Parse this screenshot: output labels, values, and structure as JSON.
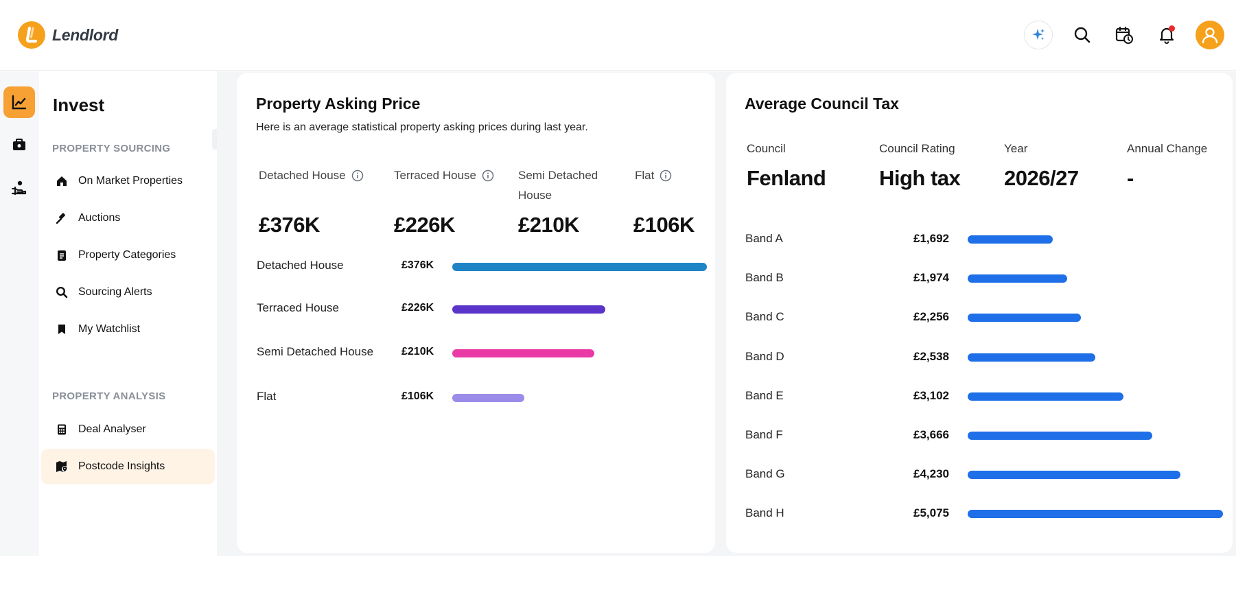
{
  "app": {
    "name": "Lendlord"
  },
  "colors": {
    "accent": "#f5a11c",
    "notification": "#ea2b2b",
    "band_bar": "#1e6fe8"
  },
  "header": {
    "icons": [
      "sparkle-icon",
      "search-icon",
      "calendar-icon",
      "bell-icon",
      "user-avatar-icon"
    ]
  },
  "rail": {
    "items": [
      "chart-icon",
      "briefcase-icon",
      "hand-coin-icon"
    ],
    "active_index": 0
  },
  "sidebar": {
    "title": "Invest",
    "sections": [
      {
        "title": "PROPERTY SOURCING",
        "items": [
          {
            "label": "On Market Properties",
            "icon": "home-icon"
          },
          {
            "label": "Auctions",
            "icon": "gavel-icon"
          },
          {
            "label": "Property Categories",
            "icon": "clipboard-icon"
          },
          {
            "label": "Sourcing Alerts",
            "icon": "search-icon"
          },
          {
            "label": "My Watchlist",
            "icon": "bookmark-icon"
          }
        ]
      },
      {
        "title": "PROPERTY ANALYSIS",
        "items": [
          {
            "label": "Deal Analyser",
            "icon": "calculator-icon"
          },
          {
            "label": "Postcode Insights",
            "icon": "map-pin-icon",
            "active": true
          }
        ]
      }
    ]
  },
  "asking_price": {
    "title": "Property Asking Price",
    "subtitle": "Here is an average statistical property asking prices during last year.",
    "stats": [
      {
        "label": "Detached House",
        "value": "£376K",
        "info": true
      },
      {
        "label": "Terraced House",
        "value": "£226K",
        "info": true
      },
      {
        "label": "Semi Detached House",
        "value": "£210K",
        "info": false
      },
      {
        "label": "Flat",
        "value": "£106K",
        "info": true
      }
    ]
  },
  "council_tax": {
    "title": "Average Council Tax",
    "meta": [
      {
        "label": "Council",
        "value": "Fenland"
      },
      {
        "label": "Council Rating",
        "value": "High tax"
      },
      {
        "label": "Year",
        "value": "2026/27"
      },
      {
        "label": "Annual Change",
        "value": "-"
      }
    ]
  },
  "chart_data": [
    {
      "type": "bar",
      "orientation": "horizontal",
      "categories": [
        "Detached House",
        "Terraced House",
        "Semi Detached House",
        "Flat"
      ],
      "values": [
        376,
        226,
        210,
        106
      ],
      "value_labels": [
        "£376K",
        "£226K",
        "£210K",
        "£106K"
      ],
      "colors": [
        "#1f84c6",
        "#5b35c9",
        "#ea3aa6",
        "#9a8ce8"
      ],
      "xlim": [
        0,
        376
      ]
    },
    {
      "type": "bar",
      "orientation": "horizontal",
      "categories": [
        "Band A",
        "Band B",
        "Band C",
        "Band D",
        "Band E",
        "Band F",
        "Band G",
        "Band H"
      ],
      "values": [
        1692,
        1974,
        2256,
        2538,
        3102,
        3666,
        4230,
        5075
      ],
      "value_labels": [
        "£1,692",
        "£1,974",
        "£2,256",
        "£2,538",
        "£3,102",
        "£3,666",
        "£4,230",
        "£5,075"
      ],
      "color": "#1e6fe8",
      "xlim": [
        0,
        5075
      ]
    }
  ]
}
